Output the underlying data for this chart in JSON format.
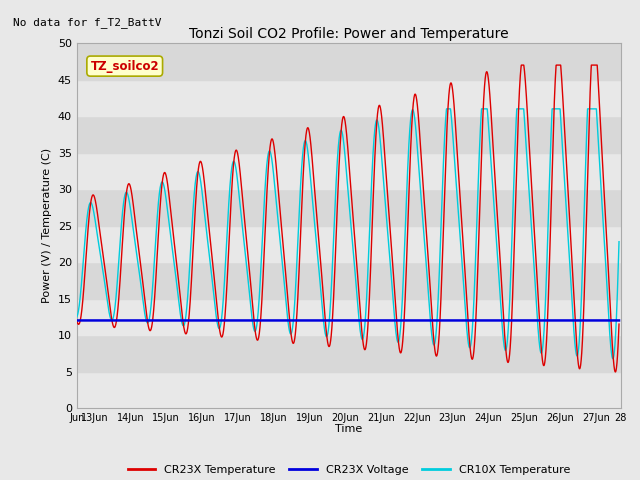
{
  "title": "Tonzi Soil CO2 Profile: Power and Temperature",
  "no_data_text": "No data for f_T2_BattV",
  "legend_box_text": "TZ_soilco2",
  "ylabel": "Power (V) / Temperature (C)",
  "xlabel": "Time",
  "ylim": [
    0,
    50
  ],
  "yticks": [
    0,
    5,
    10,
    15,
    20,
    25,
    30,
    35,
    40,
    45,
    50
  ],
  "bg_color": "#e8e8e8",
  "plot_bg_color": "#e0e0e0",
  "stripe_color_light": "#e8e8e8",
  "stripe_color_dark": "#d8d8d8",
  "line_colors": {
    "cr23x_temp": "#dd0000",
    "cr23x_volt": "#0000dd",
    "cr10x_temp": "#00ccdd"
  },
  "legend_entries": [
    "CR23X Temperature",
    "CR23X Voltage",
    "CR10X Temperature"
  ],
  "x_start_day": 12.5,
  "x_end_day": 27.7,
  "xtick_positions": [
    12.5,
    13,
    14,
    15,
    16,
    17,
    18,
    19,
    20,
    21,
    22,
    23,
    24,
    25,
    26,
    27,
    27.7
  ],
  "xtick_labels": [
    "Jun",
    "13Jun",
    "14Jun",
    "15Jun",
    "16Jun",
    "17Jun",
    "18Jun",
    "19Jun",
    "20Jun",
    "21Jun",
    "22Jun",
    "23Jun",
    "24Jun",
    "25Jun",
    "26Jun",
    "27Jun",
    "28"
  ],
  "voltage_level": 12.0
}
